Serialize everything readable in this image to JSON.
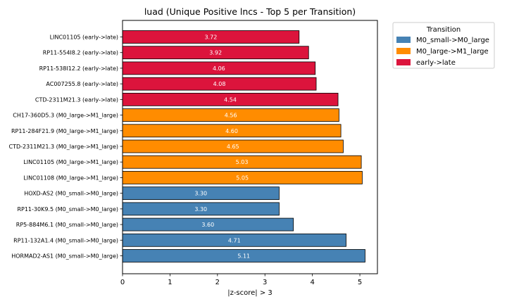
{
  "chart_data": {
    "type": "bar",
    "orientation": "horizontal",
    "title": "luad (Unique Positive lncs - Top 5 per Transition)",
    "xlabel": "|z-score| > 3",
    "ylabel": "",
    "xlim": [
      0,
      5.37
    ],
    "xticks": [
      0,
      1,
      2,
      3,
      4,
      5
    ],
    "grid": false,
    "legend": {
      "title": "Transition",
      "placement": "outside-top-right",
      "entries": [
        {
          "label": "M0_small->M0_large",
          "color": "#4682b4"
        },
        {
          "label": "M0_large->M1_large",
          "color": "#ff8c00"
        },
        {
          "label": "early->late",
          "color": "#dc143c"
        }
      ]
    },
    "bars": [
      {
        "label": "LINC01105 (early->late)",
        "value": 3.72,
        "value_label": "3.72",
        "group": "early->late",
        "color": "#dc143c"
      },
      {
        "label": "RP11-554I8.2 (early->late)",
        "value": 3.92,
        "value_label": "3.92",
        "group": "early->late",
        "color": "#dc143c"
      },
      {
        "label": "RP11-538I12.2 (early->late)",
        "value": 4.06,
        "value_label": "4.06",
        "group": "early->late",
        "color": "#dc143c"
      },
      {
        "label": "AC007255.8 (early->late)",
        "value": 4.08,
        "value_label": "4.08",
        "group": "early->late",
        "color": "#dc143c"
      },
      {
        "label": "CTD-2311M21.3 (early->late)",
        "value": 4.54,
        "value_label": "4.54",
        "group": "early->late",
        "color": "#dc143c"
      },
      {
        "label": "CH17-360D5.3 (M0_large->M1_large)",
        "value": 4.56,
        "value_label": "4.56",
        "group": "M0_large->M1_large",
        "color": "#ff8c00"
      },
      {
        "label": "RP11-284F21.9 (M0_large->M1_large)",
        "value": 4.6,
        "value_label": "4.60",
        "group": "M0_large->M1_large",
        "color": "#ff8c00"
      },
      {
        "label": "CTD-2311M21.3 (M0_large->M1_large)",
        "value": 4.65,
        "value_label": "4.65",
        "group": "M0_large->M1_large",
        "color": "#ff8c00"
      },
      {
        "label": "LINC01105 (M0_large->M1_large)",
        "value": 5.03,
        "value_label": "5.03",
        "group": "M0_large->M1_large",
        "color": "#ff8c00"
      },
      {
        "label": "LINC01108 (M0_large->M1_large)",
        "value": 5.05,
        "value_label": "5.05",
        "group": "M0_large->M1_large",
        "color": "#ff8c00"
      },
      {
        "label": "HOXD-AS2 (M0_small->M0_large)",
        "value": 3.3,
        "value_label": "3.30",
        "group": "M0_small->M0_large",
        "color": "#4682b4"
      },
      {
        "label": "RP11-30K9.5 (M0_small->M0_large)",
        "value": 3.3,
        "value_label": "3.30",
        "group": "M0_small->M0_large",
        "color": "#4682b4"
      },
      {
        "label": "RP5-884M6.1 (M0_small->M0_large)",
        "value": 3.6,
        "value_label": "3.60",
        "group": "M0_small->M0_large",
        "color": "#4682b4"
      },
      {
        "label": "RP11-132A1.4 (M0_small->M0_large)",
        "value": 4.71,
        "value_label": "4.71",
        "group": "M0_small->M0_large",
        "color": "#4682b4"
      },
      {
        "label": "HORMAD2-AS1 (M0_small->M0_large)",
        "value": 5.11,
        "value_label": "5.11",
        "group": "M0_small->M0_large",
        "color": "#4682b4"
      }
    ]
  }
}
